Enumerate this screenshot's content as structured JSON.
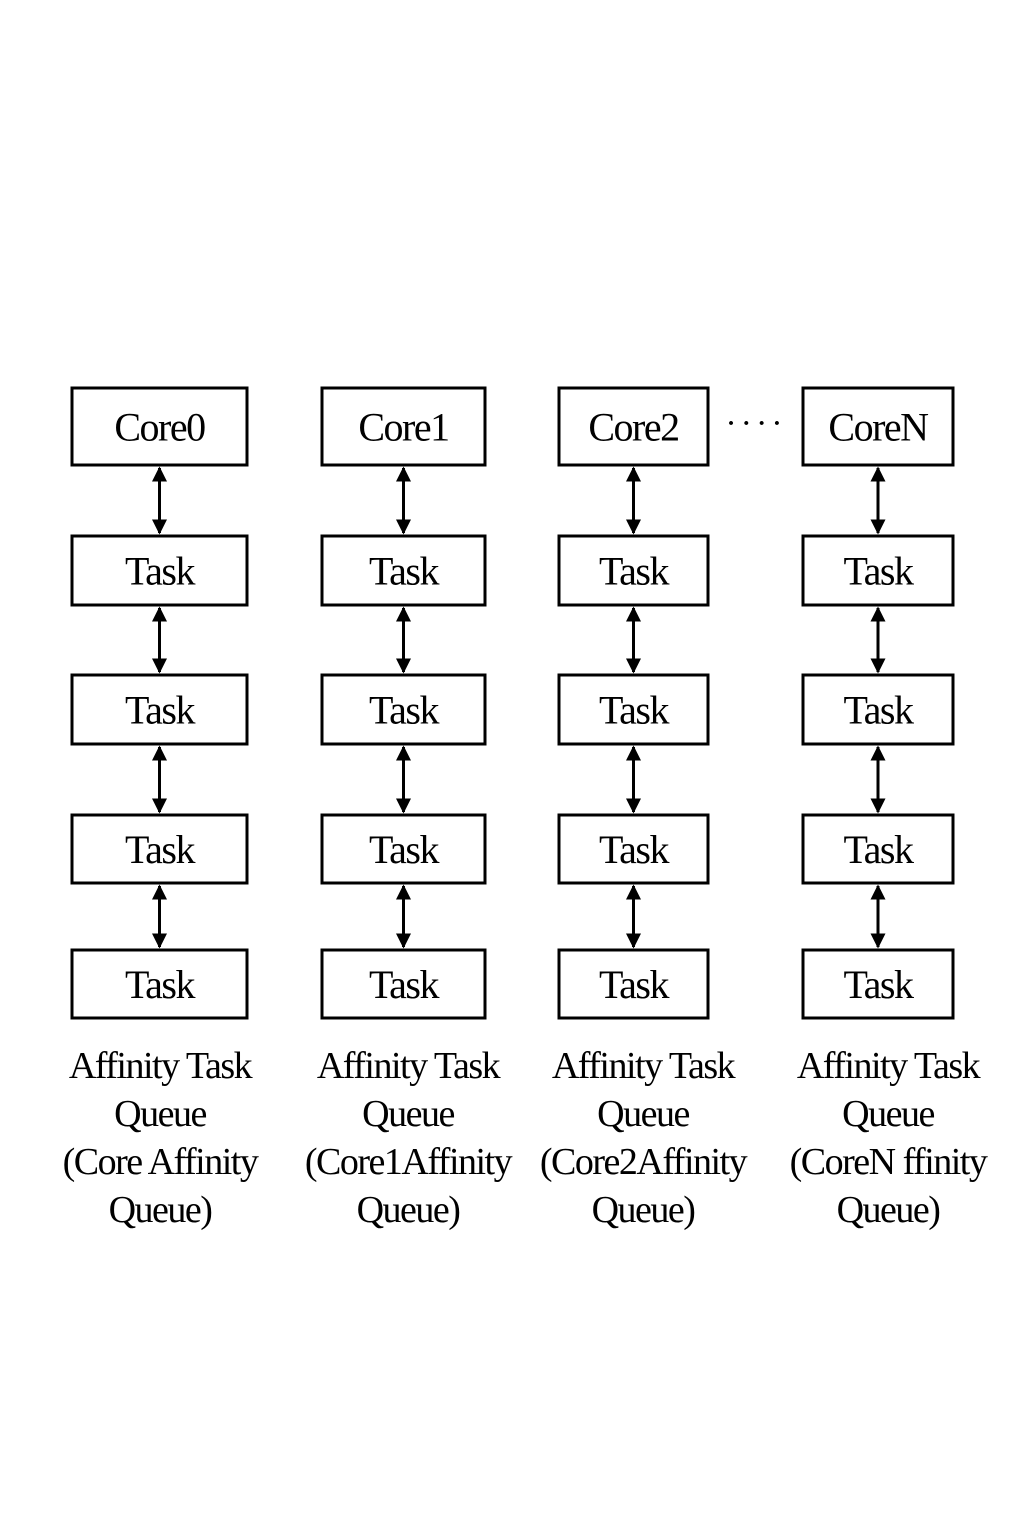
{
  "diagram": {
    "separator": "····",
    "columns": [
      {
        "core": "Core0",
        "tasks": [
          "Task",
          "Task",
          "Task",
          "Task"
        ],
        "label_lines": [
          "Affinity Task",
          "Queue",
          "(Core Affinity",
          "Queue)"
        ]
      },
      {
        "core": "Core1",
        "tasks": [
          "Task",
          "Task",
          "Task",
          "Task"
        ],
        "label_lines": [
          "Affinity Task",
          "Queue",
          "(Core1Affinity",
          "Queue)"
        ]
      },
      {
        "core": "Core2",
        "tasks": [
          "Task",
          "Task",
          "Task",
          "Task"
        ],
        "label_lines": [
          "Affinity Task",
          "Queue",
          "(Core2Affinity",
          "Queue)"
        ]
      },
      {
        "core": "CoreN",
        "tasks": [
          "Task",
          "Task",
          "Task",
          "Task"
        ],
        "label_lines": [
          "Affinity Task",
          "Queue",
          "(CoreN ffinity",
          "Queue)"
        ]
      }
    ],
    "arrow_style": "bidirectional",
    "line_color": "#000000"
  }
}
